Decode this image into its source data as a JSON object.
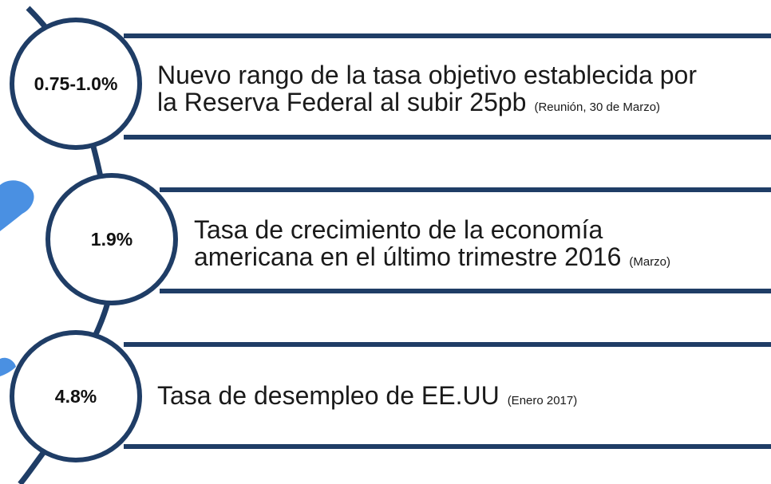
{
  "items": [
    {
      "value": "0.75-1.0%",
      "lines": [
        "Nuevo rango de la tasa objetivo establecida por",
        "la Reserva Federal al subir 25pb"
      ],
      "note": "(Reunión, 30 de Marzo)"
    },
    {
      "value": "1.9%",
      "lines": [
        "Tasa de crecimiento de la economía",
        "americana en el último trimestre 2016"
      ],
      "note": "(Marzo)"
    },
    {
      "value": "4.8%",
      "lines": [
        "Tasa de desempleo de EE.UU"
      ],
      "note": "(Enero 2017)"
    }
  ]
}
